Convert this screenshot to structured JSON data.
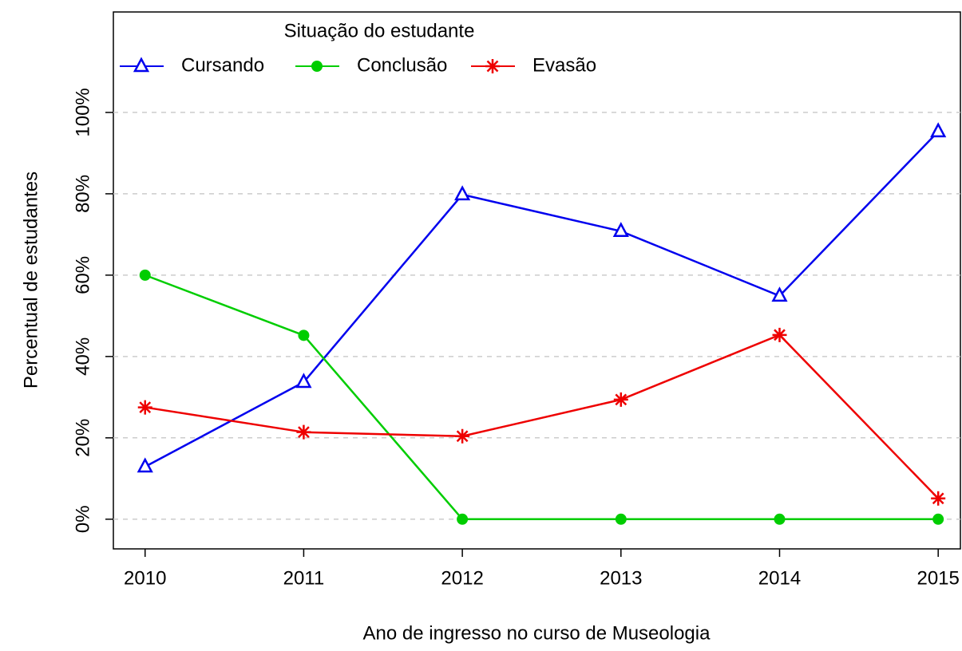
{
  "chart_data": {
    "type": "line",
    "x_label": "Ano de ingresso no curso de Museologia",
    "y_label": "Percentual de estudantes",
    "legend_title": "Situação do estudante",
    "x": [
      2010,
      2011,
      2012,
      2013,
      2014,
      2015
    ],
    "series": [
      {
        "name": "Cursando",
        "color": "#0000ee",
        "marker": "triangle",
        "values": [
          12.9,
          33.7,
          79.8,
          70.8,
          54.9,
          95.3
        ]
      },
      {
        "name": "Conclusão",
        "color": "#00cd00",
        "marker": "circle",
        "values": [
          60,
          45.2,
          0,
          0,
          0,
          0
        ]
      },
      {
        "name": "Evasão",
        "color": "#ee0000",
        "marker": "asterisk",
        "values": [
          27.5,
          21.4,
          20.4,
          29.4,
          45.3,
          5.1
        ]
      }
    ],
    "xlim": [
      2009.8,
      2015.14
    ],
    "ylim": [
      -7.3,
      124.7
    ],
    "xticks": [
      2010,
      2011,
      2012,
      2013,
      2014,
      2015
    ],
    "yticks": [
      {
        "value": 0,
        "label": "0%"
      },
      {
        "value": 20,
        "label": "20%"
      },
      {
        "value": 40,
        "label": "40%"
      },
      {
        "value": 60,
        "label": "60%"
      },
      {
        "value": 80,
        "label": "80%"
      },
      {
        "value": 100,
        "label": "100%"
      }
    ],
    "grid": true,
    "legend_position": "top"
  }
}
